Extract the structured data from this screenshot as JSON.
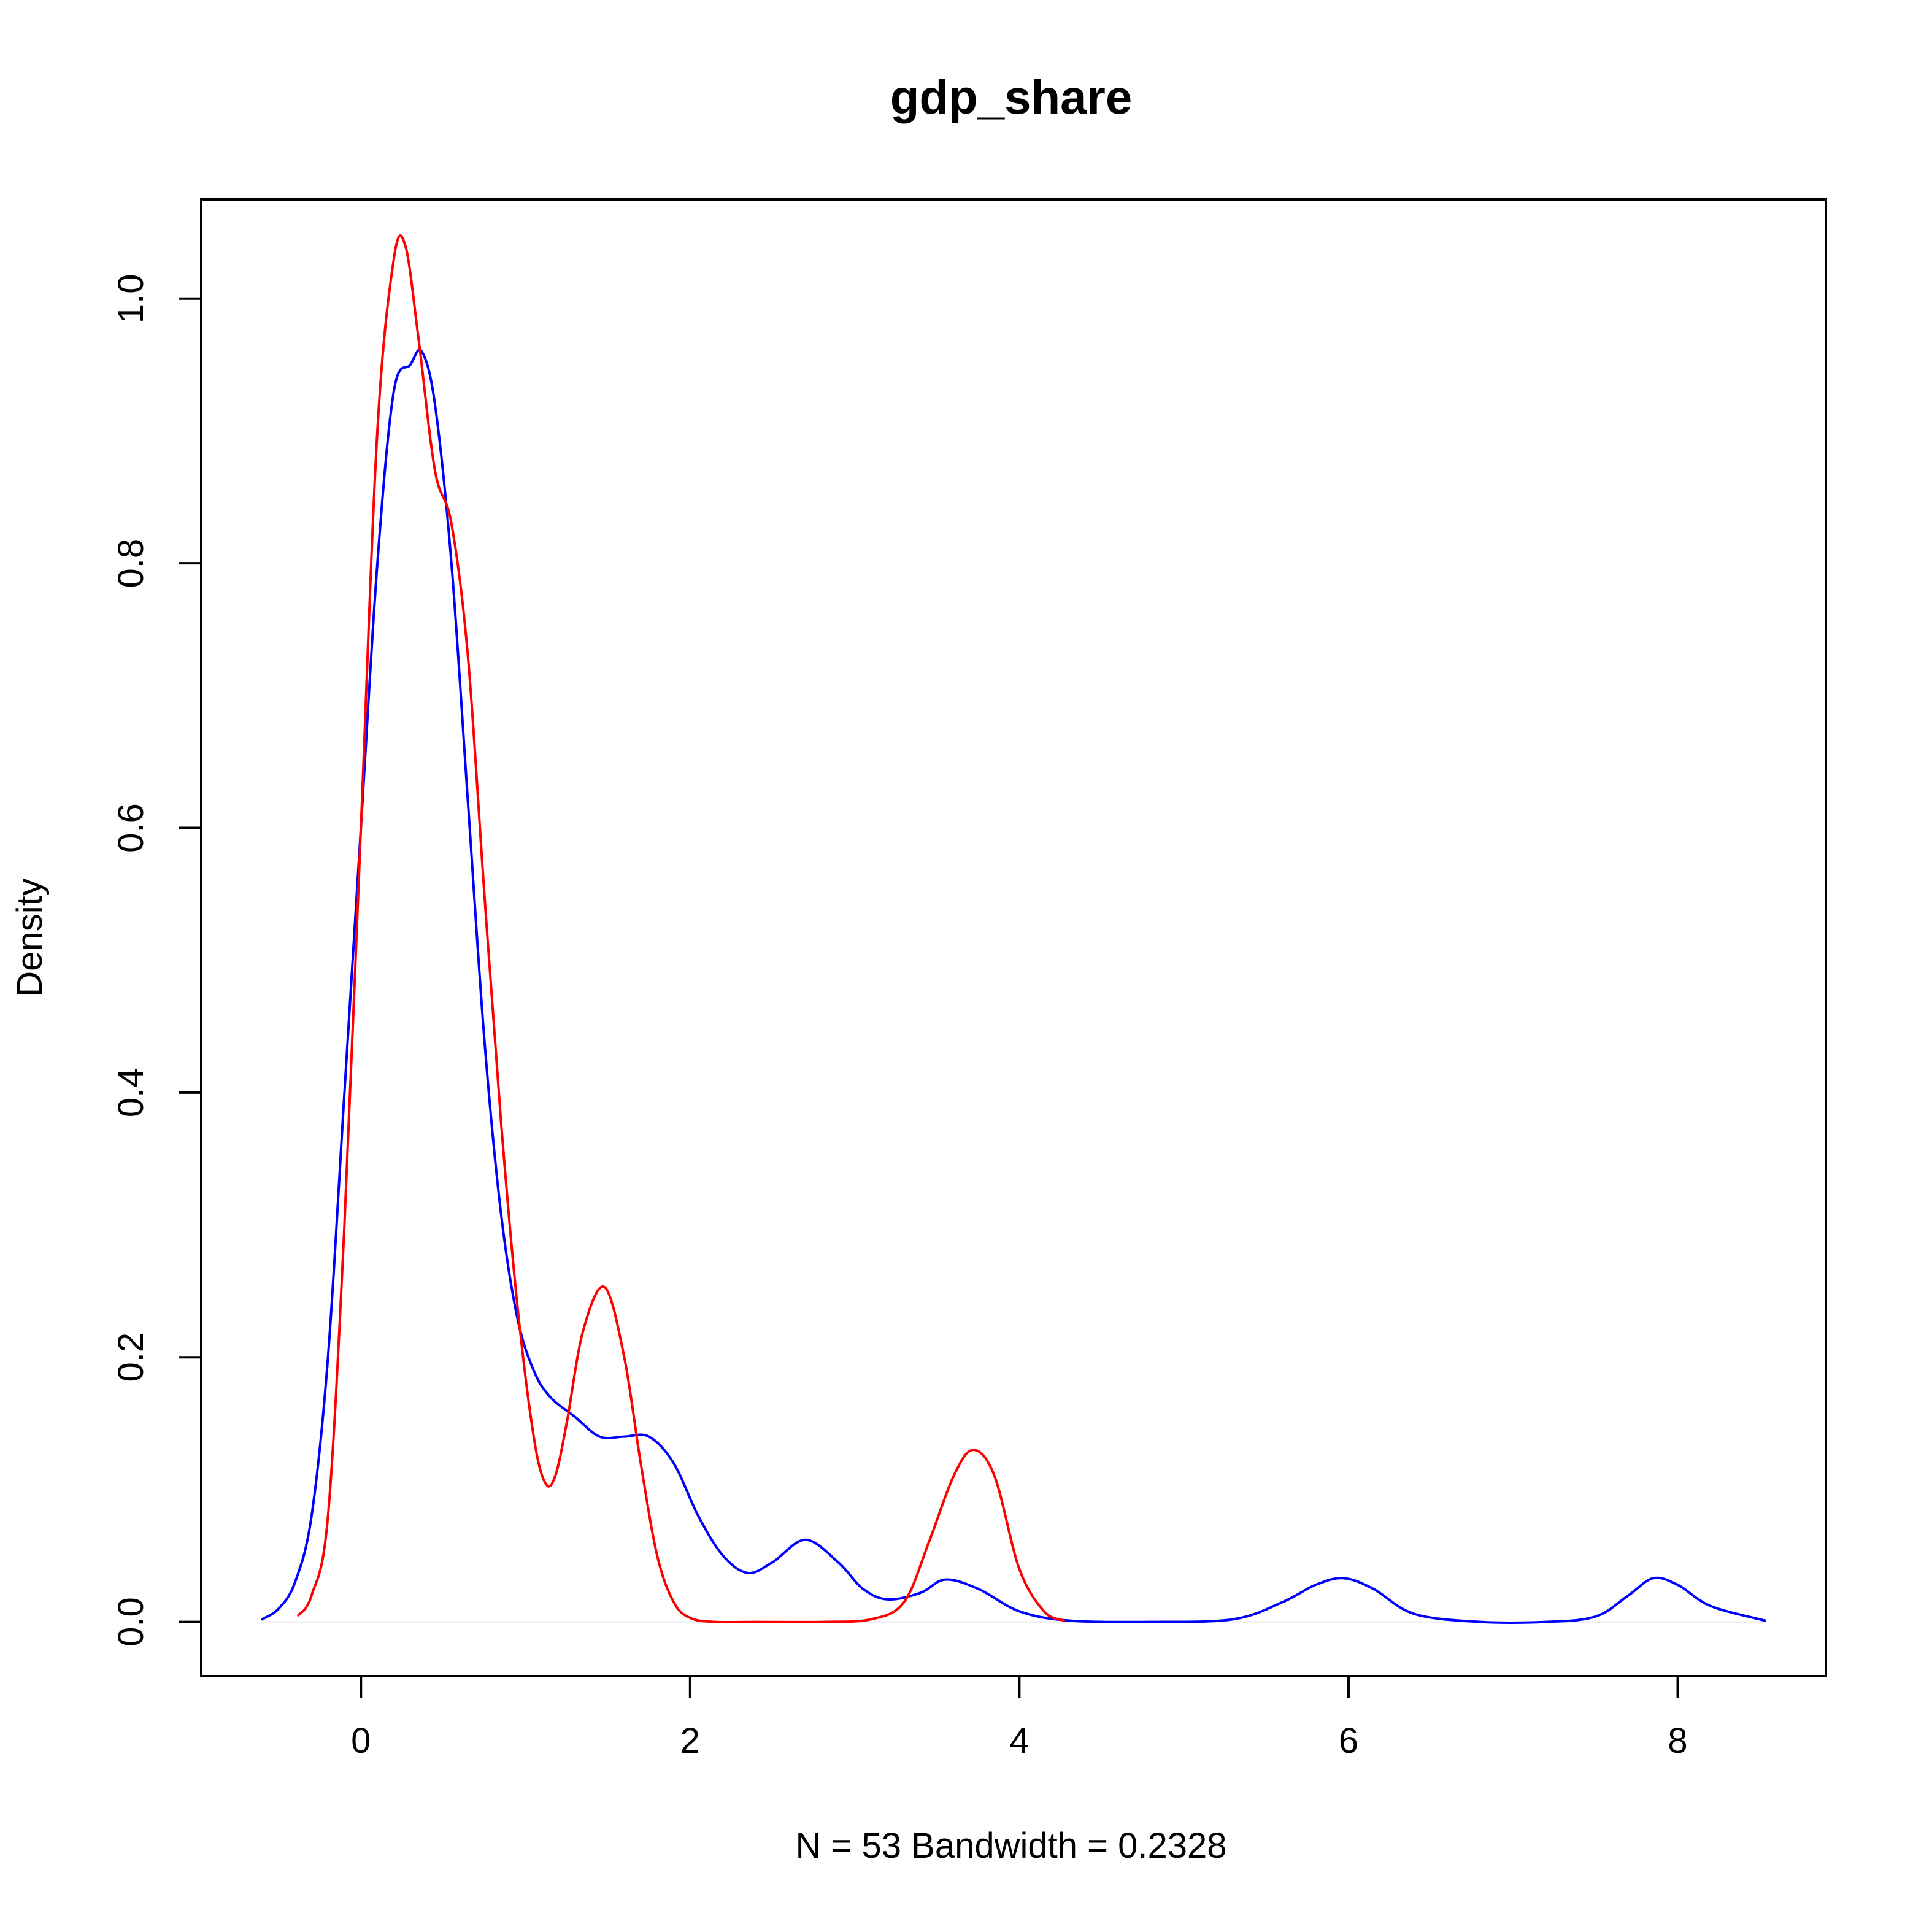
{
  "chart_data": {
    "type": "line",
    "title": "gdp_share",
    "xlabel": "N = 53   Bandwidth = 0.2328",
    "ylabel": "Density",
    "xlim": [
      -0.97,
      8.9
    ],
    "ylim": [
      -0.041,
      1.075
    ],
    "x_ticks": [
      0,
      2,
      4,
      6,
      8
    ],
    "x_tick_labels": [
      "0",
      "2",
      "4",
      "6",
      "8"
    ],
    "y_ticks": [
      0.0,
      0.2,
      0.4,
      0.6,
      0.8,
      1.0
    ],
    "y_tick_labels": [
      "0.0",
      "0.2",
      "0.4",
      "0.6",
      "0.8",
      "1.0"
    ],
    "grid": false,
    "zero_line": true,
    "series": [
      {
        "color": "#0000ff",
        "x": [
          -0.6,
          -0.5,
          -0.4,
          -0.3,
          -0.2,
          -0.1,
          0.0,
          0.1,
          0.2,
          0.3,
          0.37,
          0.45,
          0.55,
          0.65,
          0.75,
          0.85,
          0.95,
          1.05,
          1.15,
          1.3,
          1.45,
          1.6,
          1.75,
          1.9,
          2.05,
          2.2,
          2.35,
          2.5,
          2.7,
          2.9,
          3.05,
          3.2,
          3.4,
          3.55,
          3.75,
          4.0,
          4.3,
          4.8,
          5.3,
          5.6,
          5.8,
          5.97,
          6.15,
          6.4,
          6.8,
          7.2,
          7.5,
          7.7,
          7.85,
          8.0,
          8.2,
          8.53
        ],
        "y": [
          0.002,
          0.01,
          0.03,
          0.08,
          0.2,
          0.4,
          0.6,
          0.8,
          0.93,
          0.95,
          0.96,
          0.92,
          0.8,
          0.62,
          0.44,
          0.31,
          0.23,
          0.19,
          0.17,
          0.155,
          0.14,
          0.14,
          0.14,
          0.12,
          0.08,
          0.05,
          0.037,
          0.045,
          0.062,
          0.045,
          0.025,
          0.017,
          0.022,
          0.032,
          0.025,
          0.008,
          0.001,
          0.0,
          0.002,
          0.015,
          0.028,
          0.033,
          0.025,
          0.006,
          0.0,
          0.0,
          0.004,
          0.02,
          0.033,
          0.028,
          0.012,
          0.001
        ]
      },
      {
        "color": "#ff0000",
        "x": [
          -0.38,
          -0.3,
          -0.2,
          -0.1,
          0.0,
          0.1,
          0.2,
          0.27,
          0.35,
          0.45,
          0.55,
          0.65,
          0.75,
          0.85,
          0.95,
          1.05,
          1.12,
          1.18,
          1.25,
          1.35,
          1.48,
          1.6,
          1.7,
          1.8,
          1.9,
          2.0,
          2.15,
          2.4,
          2.8,
          3.1,
          3.3,
          3.45,
          3.6,
          3.72,
          3.85,
          4.0,
          4.15,
          4.27
        ],
        "y": [
          0.005,
          0.02,
          0.08,
          0.3,
          0.6,
          0.9,
          1.03,
          1.04,
          0.97,
          0.87,
          0.83,
          0.73,
          0.55,
          0.38,
          0.24,
          0.14,
          0.105,
          0.11,
          0.15,
          0.22,
          0.253,
          0.2,
          0.12,
          0.05,
          0.015,
          0.003,
          0.0,
          0.0,
          0.0,
          0.002,
          0.015,
          0.06,
          0.11,
          0.13,
          0.11,
          0.04,
          0.008,
          0.001
        ]
      }
    ]
  }
}
